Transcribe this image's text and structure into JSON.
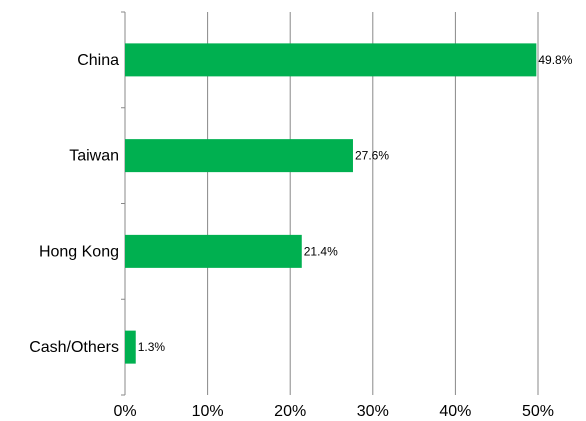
{
  "chart_data": {
    "type": "bar",
    "orientation": "horizontal",
    "categories": [
      "China",
      "Taiwan",
      "Hong Kong",
      "Cash/Others"
    ],
    "values": [
      49.8,
      27.6,
      21.4,
      1.3
    ],
    "data_labels": [
      "49.8%",
      "27.6%",
      "21.4%",
      "1.3%"
    ],
    "x_ticks": [
      "0%",
      "10%",
      "20%",
      "30%",
      "40%",
      "50%"
    ],
    "xlim": [
      0,
      50
    ],
    "grid": true,
    "bar_color": "#00b050",
    "grid_color": "#888888",
    "title": "",
    "xlabel": "",
    "ylabel": ""
  }
}
